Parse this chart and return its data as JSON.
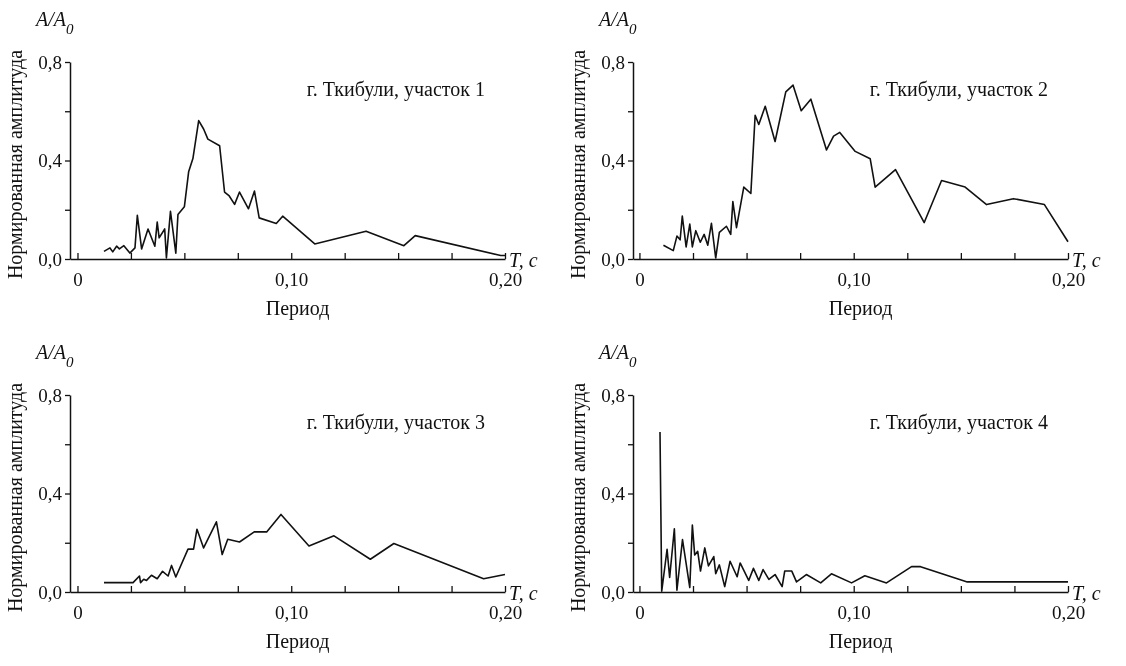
{
  "chart_data": [
    {
      "type": "line",
      "title": "г. Ткибули, участок 1",
      "xlabel": "Период",
      "ylabel": "Нормированная амплитуда",
      "annotations": [
        "A/A$_{0}$",
        "T, с"
      ],
      "xlim": [
        -0.0035,
        0.2
      ],
      "ylim": [
        0,
        0.8
      ],
      "xticks": [
        {
          "value": 0,
          "label": "0"
        },
        {
          "value": 0.025,
          "label": null
        },
        {
          "value": 0.05,
          "label": null
        },
        {
          "value": 0.075,
          "label": null
        },
        {
          "value": 0.1,
          "label": "0,10"
        },
        {
          "value": 0.125,
          "label": null
        },
        {
          "value": 0.15,
          "label": null
        },
        {
          "value": 0.175,
          "label": null
        },
        {
          "value": 0.2,
          "label": "0,20"
        }
      ],
      "yticks": [
        {
          "value": 0,
          "label": "0,0"
        },
        {
          "value": 0.2,
          "label": null
        },
        {
          "value": 0.4,
          "label": "0,4"
        },
        {
          "value": 0.6,
          "label": null
        },
        {
          "value": 0.8,
          "label": "0,8"
        }
      ],
      "marker": "none",
      "line_style": "solid",
      "series": [
        {
          "color": "#111111",
          "x": [
            0.0124,
            0.0152,
            0.0165,
            0.0183,
            0.0196,
            0.0217,
            0.0245,
            0.0269,
            0.028,
            0.03,
            0.033,
            0.0362,
            0.0373,
            0.0382,
            0.0408,
            0.0416,
            0.0435,
            0.046,
            0.047,
            0.05,
            0.052,
            0.054,
            0.0567,
            0.059,
            0.061,
            0.0665,
            0.0688,
            0.071,
            0.0735,
            0.0758,
            0.08,
            0.0828,
            0.085,
            0.093,
            0.096,
            0.111,
            0.135,
            0.1527,
            0.158,
            0.198,
            0.2
          ],
          "values": [
            0.031,
            0.045,
            0.029,
            0.052,
            0.041,
            0.054,
            0.024,
            0.045,
            0.177,
            0.041,
            0.122,
            0.052,
            0.15,
            0.086,
            0.122,
            0.004,
            0.194,
            0.024,
            0.181,
            0.212,
            0.354,
            0.408,
            0.562,
            0.528,
            0.487,
            0.46,
            0.272,
            0.256,
            0.222,
            0.272,
            0.204,
            0.276,
            0.167,
            0.144,
            0.174,
            0.061,
            0.113,
            0.054,
            0.095,
            0.014,
            0.014
          ]
        }
      ]
    },
    {
      "type": "line",
      "title": "г. Ткибули, участок 2",
      "xlabel": "Период",
      "ylabel": "Нормированная амплитуда",
      "annotations": [
        "A/A$_{0}$",
        "T, с"
      ],
      "xlim": [
        -0.003,
        0.2
      ],
      "ylim": [
        0,
        0.8
      ],
      "xticks": [
        {
          "value": 0,
          "label": "0"
        },
        {
          "value": 0.025,
          "label": null
        },
        {
          "value": 0.05,
          "label": null
        },
        {
          "value": 0.075,
          "label": null
        },
        {
          "value": 0.1,
          "label": "0,10"
        },
        {
          "value": 0.125,
          "label": null
        },
        {
          "value": 0.15,
          "label": null
        },
        {
          "value": 0.175,
          "label": null
        },
        {
          "value": 0.2,
          "label": "0,20"
        }
      ],
      "yticks": [
        {
          "value": 0,
          "label": "0,0"
        },
        {
          "value": 0.2,
          "label": null
        },
        {
          "value": 0.4,
          "label": "0,4"
        },
        {
          "value": 0.6,
          "label": null
        },
        {
          "value": 0.8,
          "label": "0,8"
        }
      ],
      "marker": "none",
      "line_style": "solid",
      "series": [
        {
          "color": "#111111",
          "x": [
            0.0112,
            0.0158,
            0.0175,
            0.019,
            0.02,
            0.0218,
            0.0235,
            0.0247,
            0.0263,
            0.0284,
            0.0302,
            0.0319,
            0.0336,
            0.0356,
            0.0373,
            0.0406,
            0.0426,
            0.0436,
            0.0453,
            0.0487,
            0.052,
            0.054,
            0.0557,
            0.0587,
            0.0633,
            0.0683,
            0.0717,
            0.0755,
            0.08,
            0.0873,
            0.0906,
            0.0935,
            0.1007,
            0.1077,
            0.11,
            0.1195,
            0.1329,
            0.141,
            0.152,
            0.162,
            0.1745,
            0.189,
            0.2
          ],
          "values": [
            0.056,
            0.034,
            0.093,
            0.078,
            0.174,
            0.049,
            0.142,
            0.049,
            0.115,
            0.068,
            0.1,
            0.056,
            0.145,
            0.004,
            0.108,
            0.133,
            0.1,
            0.233,
            0.127,
            0.292,
            0.266,
            0.584,
            0.546,
            0.62,
            0.477,
            0.679,
            0.706,
            0.602,
            0.649,
            0.443,
            0.499,
            0.514,
            0.437,
            0.407,
            0.292,
            0.363,
            0.148,
            0.319,
            0.292,
            0.221,
            0.245,
            0.221,
            0.07
          ]
        }
      ]
    },
    {
      "type": "line",
      "title": "г. Ткибули, участок 3",
      "xlabel": "Период",
      "ylabel": "Нормированная амплитуда",
      "annotations": [
        "A/A$_{0}$",
        "T, с"
      ],
      "xlim": [
        -0.0035,
        0.2
      ],
      "ylim": [
        0,
        0.8
      ],
      "xticks": [
        {
          "value": 0,
          "label": "0"
        },
        {
          "value": 0.025,
          "label": null
        },
        {
          "value": 0.05,
          "label": null
        },
        {
          "value": 0.075,
          "label": null
        },
        {
          "value": 0.1,
          "label": "0,10"
        },
        {
          "value": 0.125,
          "label": null
        },
        {
          "value": 0.15,
          "label": null
        },
        {
          "value": 0.175,
          "label": null
        },
        {
          "value": 0.2,
          "label": "0,20"
        }
      ],
      "yticks": [
        {
          "value": 0,
          "label": "0,0"
        },
        {
          "value": 0.2,
          "label": null
        },
        {
          "value": 0.4,
          "label": "0,4"
        },
        {
          "value": 0.6,
          "label": null
        },
        {
          "value": 0.8,
          "label": "0,8"
        }
      ],
      "marker": "none",
      "line_style": "solid",
      "series": [
        {
          "color": "#111111",
          "x": [
            0.0124,
            0.026,
            0.029,
            0.0295,
            0.031,
            0.0323,
            0.0346,
            0.0373,
            0.0398,
            0.0424,
            0.044,
            0.046,
            0.0517,
            0.0543,
            0.0559,
            0.059,
            0.065,
            0.0677,
            0.0703,
            0.0758,
            0.0827,
            0.0885,
            0.0952,
            0.1083,
            0.12,
            0.137,
            0.148,
            0.19,
            0.2
          ],
          "values": [
            0.038,
            0.038,
            0.065,
            0.038,
            0.052,
            0.047,
            0.068,
            0.054,
            0.084,
            0.065,
            0.108,
            0.061,
            0.174,
            0.174,
            0.255,
            0.179,
            0.285,
            0.152,
            0.214,
            0.203,
            0.244,
            0.244,
            0.315,
            0.187,
            0.228,
            0.133,
            0.197,
            0.054,
            0.071
          ]
        }
      ]
    },
    {
      "type": "line",
      "title": "г. Ткибули, участок 4",
      "xlabel": "Период",
      "ylabel": "Нормированная амплитуда",
      "annotations": [
        "A/A$_{0}$",
        "T, с"
      ],
      "xlim": [
        -0.003,
        0.2
      ],
      "ylim": [
        0,
        0.8
      ],
      "xticks": [
        {
          "value": 0,
          "label": "0"
        },
        {
          "value": 0.025,
          "label": null
        },
        {
          "value": 0.05,
          "label": null
        },
        {
          "value": 0.075,
          "label": null
        },
        {
          "value": 0.1,
          "label": "0,10"
        },
        {
          "value": 0.125,
          "label": null
        },
        {
          "value": 0.15,
          "label": null
        },
        {
          "value": 0.175,
          "label": null
        },
        {
          "value": 0.2,
          "label": "0,20"
        }
      ],
      "yticks": [
        {
          "value": 0,
          "label": "0,0"
        },
        {
          "value": 0.2,
          "label": null
        },
        {
          "value": 0.4,
          "label": "0,4"
        },
        {
          "value": 0.6,
          "label": null
        },
        {
          "value": 0.8,
          "label": "0,8"
        }
      ],
      "marker": "none",
      "line_style": "solid",
      "series": [
        {
          "color": "#111111",
          "x": [
            0.0096,
            0.0104,
            0.0129,
            0.0141,
            0.0163,
            0.0175,
            0.0201,
            0.0235,
            0.0247,
            0.0258,
            0.0272,
            0.0285,
            0.0305,
            0.0322,
            0.0347,
            0.0356,
            0.0373,
            0.0398,
            0.0423,
            0.0456,
            0.047,
            0.051,
            0.0532,
            0.0557,
            0.0577,
            0.0604,
            0.0633,
            0.0666,
            0.0678,
            0.0711,
            0.0733,
            0.0779,
            0.0846,
            0.0896,
            0.099,
            0.1052,
            0.1153,
            0.127,
            0.1312,
            0.153,
            0.2
          ],
          "values": [
            0.65,
            0.003,
            0.173,
            0.059,
            0.257,
            0.007,
            0.213,
            0.018,
            0.272,
            0.15,
            0.165,
            0.085,
            0.179,
            0.106,
            0.144,
            0.074,
            0.11,
            0.022,
            0.125,
            0.062,
            0.118,
            0.047,
            0.096,
            0.047,
            0.091,
            0.051,
            0.071,
            0.022,
            0.085,
            0.085,
            0.041,
            0.071,
            0.037,
            0.074,
            0.037,
            0.066,
            0.037,
            0.103,
            0.103,
            0.041,
            0.041
          ]
        }
      ]
    }
  ]
}
